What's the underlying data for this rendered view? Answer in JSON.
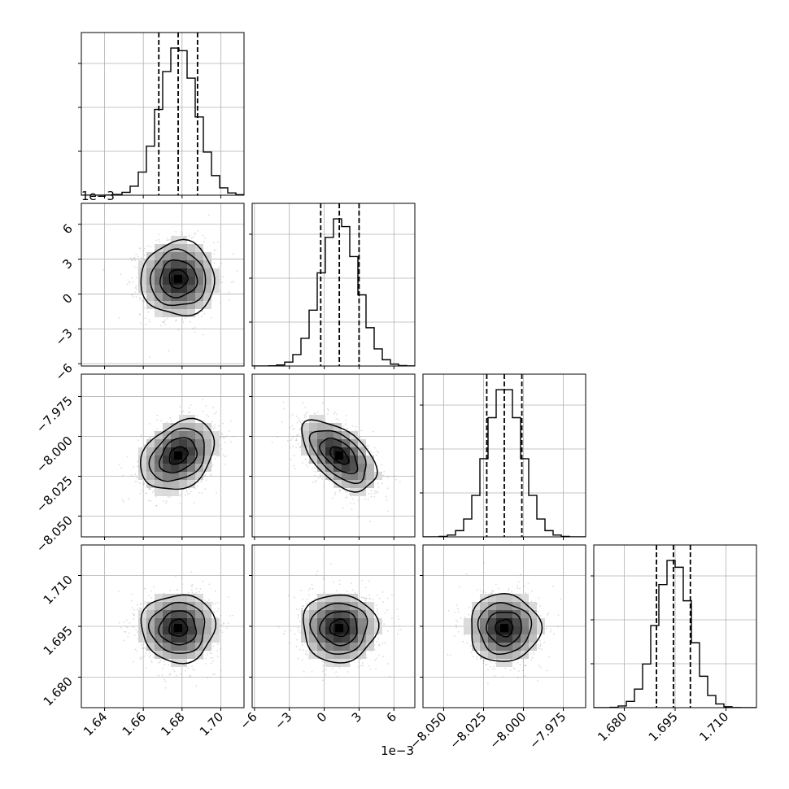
{
  "chart_data": {
    "type": "corner",
    "grid": true,
    "parameters": [
      {
        "index": 0,
        "range": [
          1.628,
          1.712
        ],
        "ticks": [
          1.64,
          1.66,
          1.68,
          1.7
        ],
        "tick_labels": [
          "1.64",
          "1.66",
          "1.68",
          "1.70"
        ],
        "offset_label": "",
        "quantiles": [
          1.668,
          1.678,
          1.688
        ],
        "mean": 1.678,
        "sd": 0.0095
      },
      {
        "index": 1,
        "range": [
          -6.2,
          7.8
        ],
        "ticks": [
          -6,
          -3,
          0,
          3,
          6
        ],
        "tick_labels": [
          "−6",
          "−3",
          "0",
          "3",
          "6"
        ],
        "offset_label": "1e−3",
        "quantiles": [
          -0.3,
          1.3,
          3.0
        ],
        "mean": 1.3,
        "sd": 1.6
      },
      {
        "index": 2,
        "range": [
          -8.063,
          -7.961
        ],
        "ticks": [
          -8.05,
          -8.025,
          -8.0,
          -7.975
        ],
        "tick_labels": [
          "−8.050",
          "−8.025",
          "−8.000",
          "−7.975"
        ],
        "offset_label": "",
        "quantiles": [
          -8.023,
          -8.012,
          -8.001
        ],
        "mean": -8.012,
        "sd": 0.011
      },
      {
        "index": 3,
        "range": [
          1.671,
          1.719
        ],
        "ticks": [
          1.68,
          1.695,
          1.71
        ],
        "tick_labels": [
          "1.680",
          "1.695",
          "1.710"
        ],
        "offset_label": "",
        "quantiles": [
          1.6895,
          1.6945,
          1.6995
        ],
        "mean": 1.6945,
        "sd": 0.005
      }
    ],
    "correlations": [
      {
        "pair": [
          1,
          0
        ],
        "rho": 0.0
      },
      {
        "pair": [
          2,
          0
        ],
        "rho": 0.3
      },
      {
        "pair": [
          2,
          1
        ],
        "rho": -0.55
      },
      {
        "pair": [
          3,
          0
        ],
        "rho": 0.0
      },
      {
        "pair": [
          3,
          1
        ],
        "rho": 0.0
      },
      {
        "pair": [
          3,
          2
        ],
        "rho": 0.0
      }
    ],
    "histogram_bins": 20
  }
}
